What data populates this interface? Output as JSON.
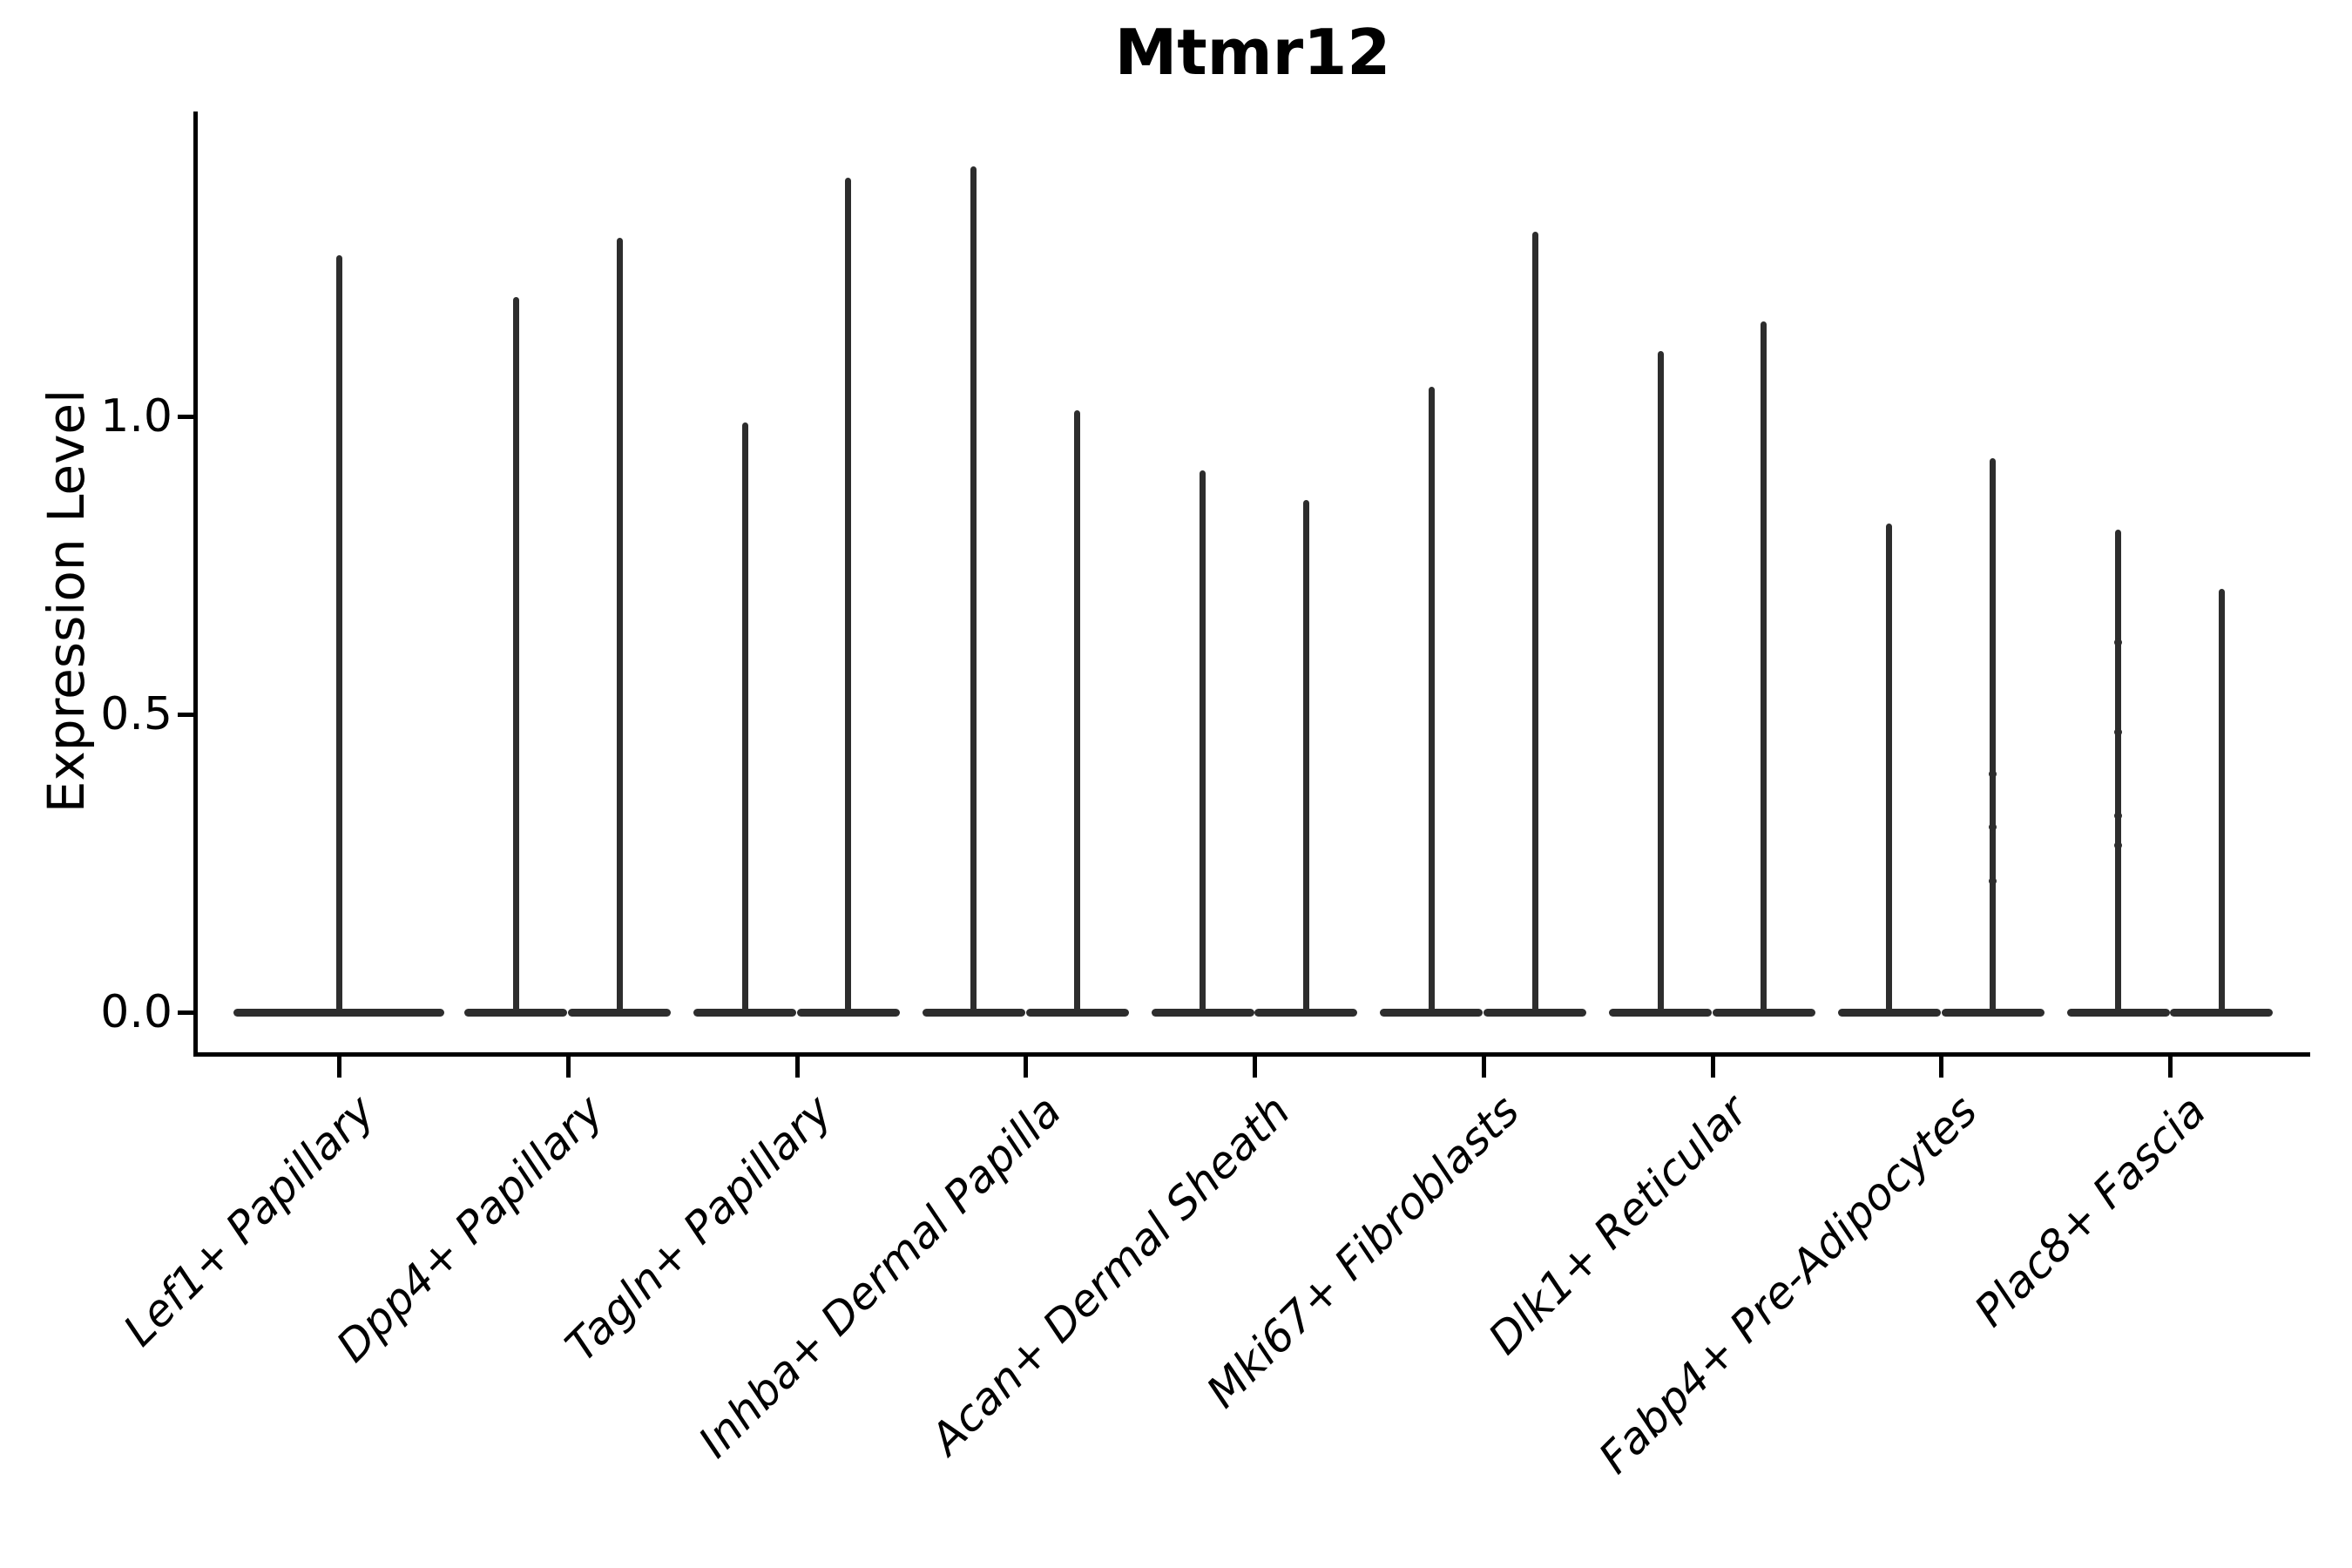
{
  "chart_data": {
    "type": "violin",
    "title": "Mtmr12",
    "ylabel": "Expression Level",
    "xlabel": "",
    "yticks": [
      {
        "value": 0.0,
        "label": "0.0"
      },
      {
        "value": 0.5,
        "label": "0.5"
      },
      {
        "value": 1.0,
        "label": "1.0"
      }
    ],
    "ylim": [
      -0.07,
      1.51
    ],
    "grid": false,
    "legend": "none",
    "ink_color": "#2d2d2d",
    "axis_color": "#000000",
    "categories": [
      "Lef1+ Papillary",
      "Dpp4+ Papillary",
      "Tagln+ Papillary",
      "Inhba+ Dermal Papilla",
      "Acan+ Dermal Sheath",
      "Mki67+ Fibroblasts",
      "Dlk1+ Reticular",
      "Fabp4+ Pre-Adipocytes",
      "Plac8+ Fascia"
    ],
    "violins": [
      {
        "category_index": 0,
        "side": "single",
        "max": 1.27
      },
      {
        "category_index": 1,
        "side": "left",
        "max": 1.2
      },
      {
        "category_index": 1,
        "side": "right",
        "max": 1.3
      },
      {
        "category_index": 2,
        "side": "left",
        "max": 0.99
      },
      {
        "category_index": 2,
        "side": "right",
        "max": 1.4
      },
      {
        "category_index": 3,
        "side": "left",
        "max": 1.42
      },
      {
        "category_index": 3,
        "side": "right",
        "max": 1.01
      },
      {
        "category_index": 4,
        "side": "left",
        "max": 0.91
      },
      {
        "category_index": 4,
        "side": "right",
        "max": 0.86
      },
      {
        "category_index": 5,
        "side": "left",
        "max": 1.05
      },
      {
        "category_index": 5,
        "side": "right",
        "max": 1.31
      },
      {
        "category_index": 6,
        "side": "left",
        "max": 1.11
      },
      {
        "category_index": 6,
        "side": "right",
        "max": 1.16
      },
      {
        "category_index": 7,
        "side": "left",
        "max": 0.82
      },
      {
        "category_index": 7,
        "side": "right",
        "max": 0.93
      },
      {
        "category_index": 8,
        "side": "left",
        "max": 0.81
      },
      {
        "category_index": 8,
        "side": "right",
        "max": 0.71
      }
    ],
    "points": [
      {
        "category_index": 7,
        "side": "right",
        "value": 0.4
      },
      {
        "category_index": 7,
        "side": "right",
        "value": 0.31
      },
      {
        "category_index": 7,
        "side": "right",
        "value": 0.22
      },
      {
        "category_index": 8,
        "side": "left",
        "value": 0.62
      },
      {
        "category_index": 8,
        "side": "left",
        "value": 0.47
      },
      {
        "category_index": 8,
        "side": "left",
        "value": 0.33
      },
      {
        "category_index": 8,
        "side": "left",
        "value": 0.28
      }
    ]
  }
}
